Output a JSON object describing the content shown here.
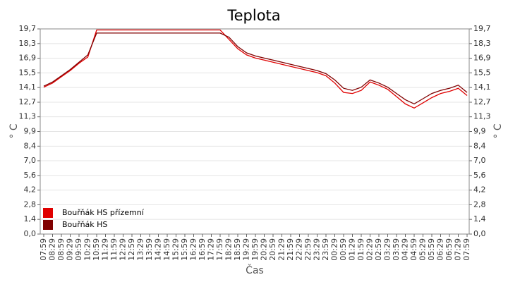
{
  "chart_data": {
    "type": "line",
    "title": "Teplota",
    "x_label": "Čas",
    "y_label": "° C",
    "y2_label": "° C",
    "categories": [
      "07:59",
      "08:29",
      "08:59",
      "09:29",
      "09:59",
      "10:29",
      "10:59",
      "11:29",
      "11:59",
      "12:29",
      "12:59",
      "13:29",
      "13:59",
      "14:29",
      "14:59",
      "15:29",
      "15:59",
      "16:29",
      "16:59",
      "17:29",
      "17:59",
      "18:29",
      "18:59",
      "19:29",
      "19:59",
      "20:29",
      "20:59",
      "21:29",
      "21:59",
      "22:29",
      "22:59",
      "23:29",
      "23:59",
      "00:29",
      "00:59",
      "01:29",
      "01:59",
      "02:29",
      "02:59",
      "03:29",
      "03:59",
      "04:29",
      "04:59",
      "05:29",
      "05:59",
      "06:29",
      "06:59",
      "07:29",
      "07:59"
    ],
    "series": [
      {
        "name": "Bouřňák HS přízemní",
        "color": "#e00000",
        "values": [
          14.1,
          14.5,
          15.1,
          15.7,
          16.4,
          17.0,
          19.6,
          19.6,
          19.6,
          19.6,
          19.6,
          19.6,
          19.6,
          19.6,
          19.6,
          19.6,
          19.6,
          19.6,
          19.6,
          19.6,
          19.6,
          18.7,
          17.8,
          17.2,
          16.9,
          16.7,
          16.5,
          16.3,
          16.1,
          15.9,
          15.7,
          15.5,
          15.2,
          14.5,
          13.6,
          13.5,
          13.8,
          14.6,
          14.3,
          13.9,
          13.2,
          12.5,
          12.1,
          12.6,
          13.1,
          13.5,
          13.7,
          14.0,
          13.3
        ]
      },
      {
        "name": "Bouřňák HS",
        "color": "#800000",
        "values": [
          14.2,
          14.6,
          15.2,
          15.8,
          16.5,
          17.2,
          19.3,
          19.3,
          19.3,
          19.3,
          19.3,
          19.3,
          19.3,
          19.3,
          19.3,
          19.3,
          19.3,
          19.3,
          19.3,
          19.3,
          19.3,
          18.9,
          18.0,
          17.4,
          17.1,
          16.9,
          16.7,
          16.5,
          16.3,
          16.1,
          15.9,
          15.7,
          15.4,
          14.8,
          14.0,
          13.8,
          14.1,
          14.8,
          14.5,
          14.1,
          13.5,
          12.9,
          12.5,
          13.0,
          13.5,
          13.8,
          14.0,
          14.3,
          13.6
        ]
      }
    ],
    "ylim": [
      0,
      19.7
    ],
    "yticks": [
      {
        "value": 0,
        "label": "0,0"
      },
      {
        "value": 1.41,
        "label": "1,4"
      },
      {
        "value": 2.81,
        "label": "2,8"
      },
      {
        "value": 4.22,
        "label": "4,2"
      },
      {
        "value": 5.63,
        "label": "5,6"
      },
      {
        "value": 7.04,
        "label": "7,0"
      },
      {
        "value": 8.44,
        "label": "8,4"
      },
      {
        "value": 9.85,
        "label": "9,9"
      },
      {
        "value": 11.26,
        "label": "11,3"
      },
      {
        "value": 12.66,
        "label": "12,7"
      },
      {
        "value": 14.07,
        "label": "14,1"
      },
      {
        "value": 15.48,
        "label": "15,5"
      },
      {
        "value": 16.89,
        "label": "16,9"
      },
      {
        "value": 18.29,
        "label": "18,3"
      },
      {
        "value": 19.7,
        "label": "19,7"
      }
    ],
    "grid": true,
    "legend": "lower left"
  }
}
